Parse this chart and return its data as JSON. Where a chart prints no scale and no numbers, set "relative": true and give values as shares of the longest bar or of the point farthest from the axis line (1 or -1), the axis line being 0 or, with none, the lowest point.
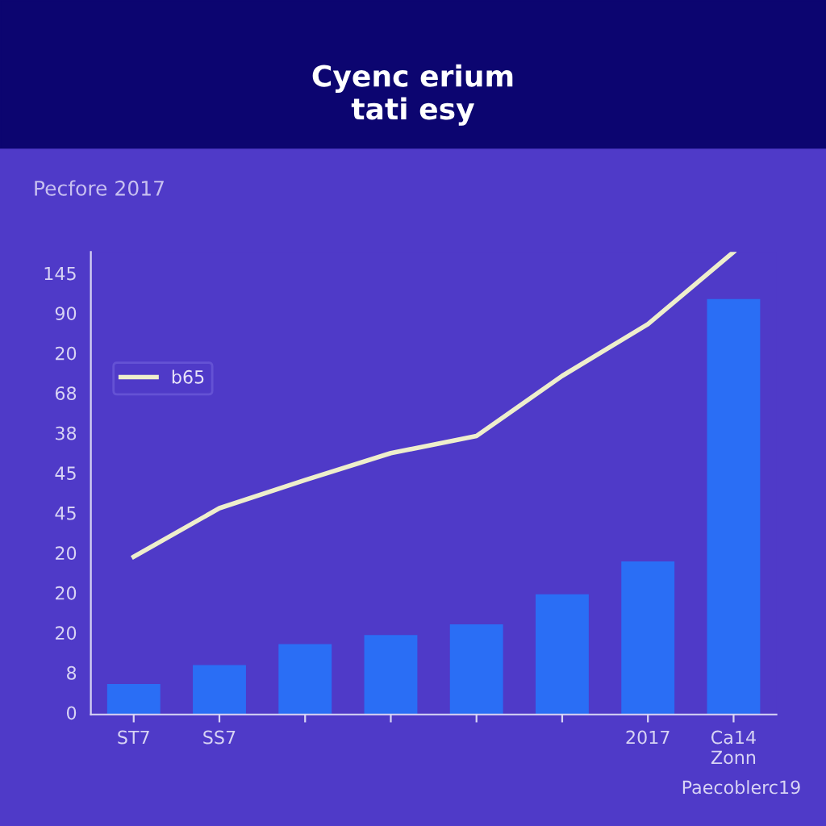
{
  "chart_data": {
    "type": "bar",
    "title": "Cyenc erium\ntati esy",
    "subtitle": "Pecfore 2017",
    "categories": [
      "ST7",
      "SS7",
      null,
      null,
      null,
      null,
      "2017",
      "Ca14\nZonn"
    ],
    "relative": true,
    "series": [
      {
        "color": "#2a6ef5",
        "values": [
          0.066,
          0.107,
          0.152,
          0.172,
          0.195,
          0.26,
          0.331,
          0.898
        ]
      },
      {
        "type": "line",
        "name": "b65",
        "color": "#eeeecc",
        "values": [
          0.341,
          0.446,
          0.507,
          0.565,
          0.602,
          0.732,
          0.844,
          1.0
        ]
      }
    ],
    "legend": "top left",
    "marker": "none",
    "line_style": "solid",
    "annotations": [
      "Paecoblerc19",
      "0",
      "8",
      "20",
      "20",
      "20",
      "45",
      "45",
      "38",
      "68",
      "20",
      "90",
      "145"
    ]
  }
}
